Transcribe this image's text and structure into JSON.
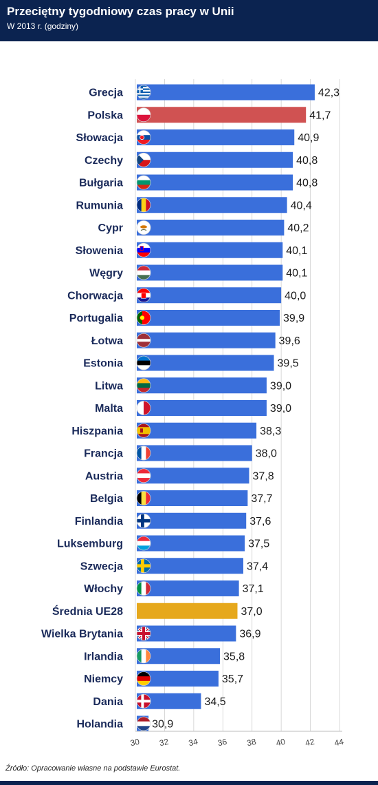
{
  "header": {
    "title": "Przeciętny tygodniowy czas pracy w Unii",
    "subtitle": "W 2013 r. (godziny)"
  },
  "source": "Źródło: Opracowanie własne na podstawie Eurostat.",
  "colors": {
    "header_bg": "#0b2350",
    "bar_default": "#3a6fdb",
    "bar_poland": "#d05252",
    "bar_average": "#e6a81c"
  },
  "chart_data": {
    "type": "bar",
    "orientation": "horizontal",
    "categories": [
      "Grecja",
      "Polska",
      "Słowacja",
      "Czechy",
      "Bułgaria",
      "Rumunia",
      "Cypr",
      "Słowenia",
      "Węgry",
      "Chorwacja",
      "Portugalia",
      "Łotwa",
      "Estonia",
      "Litwa",
      "Malta",
      "Hiszpania",
      "Francja",
      "Austria",
      "Belgia",
      "Finlandia",
      "Luksemburg",
      "Szwecja",
      "Włochy",
      "Średnia UE28",
      "Wielka Brytania",
      "Irlandia",
      "Niemcy",
      "Dania",
      "Holandia"
    ],
    "values": [
      42.3,
      41.7,
      40.9,
      40.8,
      40.8,
      40.4,
      40.2,
      40.1,
      40.1,
      40.0,
      39.9,
      39.6,
      39.5,
      39.0,
      39.0,
      38.3,
      38.0,
      37.8,
      37.7,
      37.6,
      37.5,
      37.4,
      37.1,
      37.0,
      36.9,
      35.8,
      35.7,
      34.5,
      30.9
    ],
    "value_labels": [
      "42,3",
      "41,7",
      "40,9",
      "40,8",
      "40,8",
      "40,4",
      "40,2",
      "40,1",
      "40,1",
      "40,0",
      "39,9",
      "39,6",
      "39,5",
      "39,0",
      "39,0",
      "38,3",
      "38,0",
      "37,8",
      "37,7",
      "37,6",
      "37,5",
      "37,4",
      "37,1",
      "37,0",
      "36,9",
      "35,8",
      "35,7",
      "34,5",
      "30,9"
    ],
    "bar_colors": [
      "default",
      "poland",
      "default",
      "default",
      "default",
      "default",
      "default",
      "default",
      "default",
      "default",
      "default",
      "default",
      "default",
      "default",
      "default",
      "default",
      "default",
      "default",
      "default",
      "default",
      "default",
      "default",
      "default",
      "average",
      "default",
      "default",
      "default",
      "default",
      "default"
    ],
    "flags": [
      "greece",
      "poland",
      "slovakia",
      "czech",
      "bulgaria",
      "romania",
      "cyprus",
      "slovenia",
      "hungary",
      "croatia",
      "portugal",
      "latvia",
      "estonia",
      "lithuania",
      "malta",
      "spain",
      "france",
      "austria",
      "belgium",
      "finland",
      "luxembourg",
      "sweden",
      "italy",
      "none",
      "uk",
      "ireland",
      "germany",
      "denmark",
      "netherlands"
    ],
    "xlim": [
      30,
      44
    ],
    "xticks": [
      "30",
      "32",
      "34",
      "36",
      "38",
      "40",
      "42",
      "44"
    ],
    "grid": true
  }
}
